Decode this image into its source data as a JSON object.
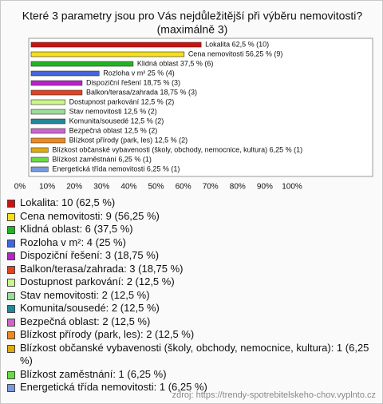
{
  "chart_data": {
    "type": "hbar",
    "title": "Které 3 parametry jsou pro Vás nejdůležitější při výběru nemovitosti?",
    "subtitle": "(maximálně 3)",
    "categories": [
      "Lokalita",
      "Cena nemovitosti",
      "Klidná oblast",
      "Rozloha v m²",
      "Dispoziční řešení",
      "Balkon/terasa/zahrada",
      "Dostupnost parkování",
      "Stav nemovitosti",
      "Komunita/sousedé",
      "Bezpečná oblast",
      "Blízkost přírody (park, les)",
      "Blízkost občanské vybavenosti (školy, obchody, nemocnice, kultura)",
      "Blízkost zaměstnání",
      "Energetická třída nemovitosti"
    ],
    "values": [
      62.5,
      56.25,
      37.5,
      25,
      18.75,
      18.75,
      12.5,
      12.5,
      12.5,
      12.5,
      12.5,
      6.25,
      6.25,
      6.25
    ],
    "value_labels": [
      "Lokalita 62,5 % (10)",
      "Cena nemovitosti 56,25 % (9)",
      "Klidná oblast 37,5 % (6)",
      "Rozloha v m² 25 % (4)",
      "Dispoziční řešení 18,75 % (3)",
      "Balkon/terasa/zahrada 18,75 % (3)",
      "Dostupnost parkování 12,5 % (2)",
      "Stav nemovitosti 12,5 % (2)",
      "Komunita/sousedé 12,5 % (2)",
      "Bezpečná oblast 12,5 % (2)",
      "Blízkost přírody (park, les) 12,5 % (2)",
      "Blízkost občanské vybavenosti (školy, obchody, nemocnice, kultura) 6,25 % (1)",
      "Blízkost zaměstnání 6,25 % (1)",
      "Energetická třída nemovitosti 6,25 % (1)"
    ],
    "legend_labels": [
      "Lokalita: 10 (62,5 %)",
      "Cena nemovitosti: 9 (56,25 %)",
      "Klidná oblast: 6 (37,5 %)",
      "Rozloha v m²: 4 (25 %)",
      "Dispoziční řešení: 3 (18,75 %)",
      "Balkon/terasa/zahrada: 3 (18,75 %)",
      "Dostupnost parkování: 2 (12,5 %)",
      "Stav nemovitosti: 2 (12,5 %)",
      "Komunita/sousedé: 2 (12,5 %)",
      "Bezpečná oblast: 2 (12,5 %)",
      "Blízkost přírody (park, les): 2 (12,5 %)",
      "Blízkost občanské vybavenosti (školy, obchody, nemocnice, kultura): 1 (6,25 %)",
      "Blízkost zaměstnání: 1 (6,25 %)",
      "Energetická třída nemovitosti: 1 (6,25 %)"
    ],
    "colors": [
      "#cc1111",
      "#f5df1c",
      "#22b522",
      "#4466dd",
      "#b822cc",
      "#dd4422",
      "#ccf58a",
      "#99dd99",
      "#228899",
      "#cc66cc",
      "#ee8822",
      "#ddaa11",
      "#66dd44",
      "#7799dd"
    ],
    "xlim": [
      0,
      100
    ],
    "xticks": [
      {
        "value": 0,
        "label": "0%"
      },
      {
        "value": 10,
        "label": "10%"
      },
      {
        "value": 20,
        "label": "20%"
      },
      {
        "value": 30,
        "label": "30%"
      },
      {
        "value": 40,
        "label": "40%"
      },
      {
        "value": 50,
        "label": "50%"
      },
      {
        "value": 60,
        "label": "60%"
      },
      {
        "value": 70,
        "label": "70%"
      },
      {
        "value": 80,
        "label": "80%"
      },
      {
        "value": 90,
        "label": "90%"
      },
      {
        "value": 100,
        "label": "100%"
      }
    ],
    "grid": false,
    "source": "zdroj: https://trendy-spotrebitelskeho-chov.vyplnto.cz"
  }
}
